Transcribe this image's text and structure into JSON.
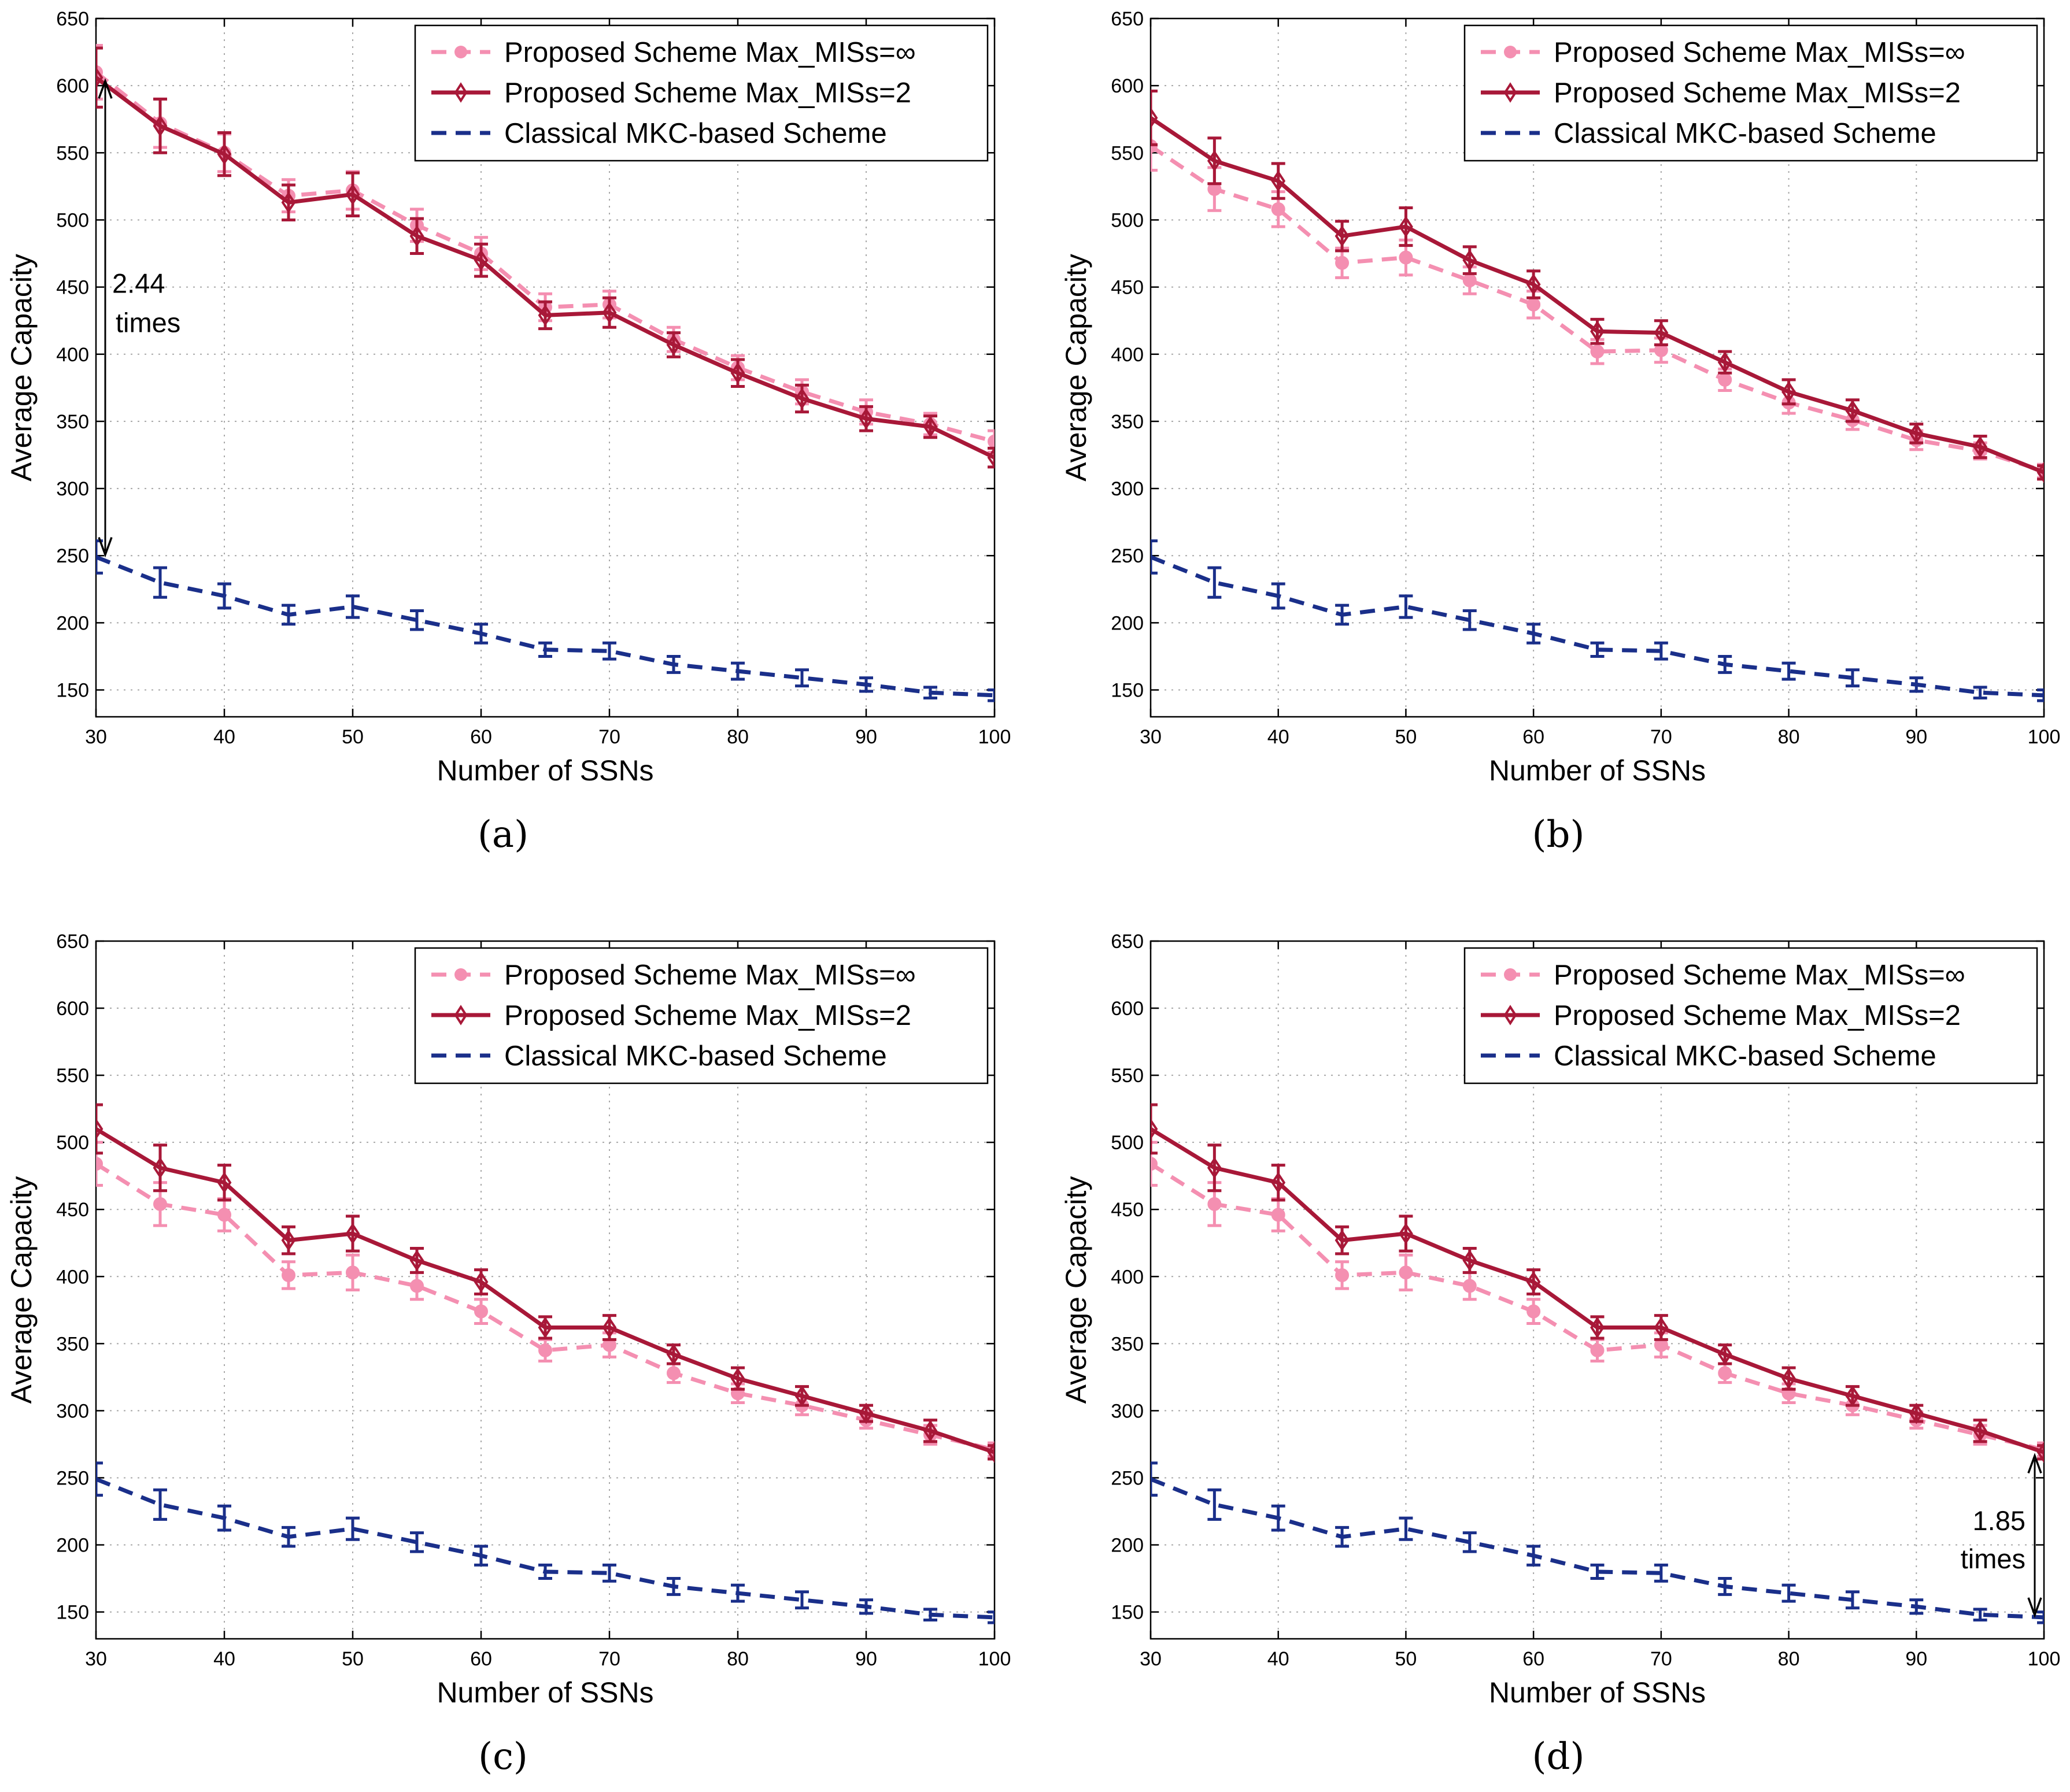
{
  "figure": {
    "panel_labels": [
      "(a)",
      "(b)",
      "(c)",
      "(d)"
    ],
    "colors": {
      "pink": "#f48fb1",
      "crimson": "#a81838",
      "navy": "#1a2f8a",
      "grid": "#a8a8a8"
    },
    "marker_icons": {
      "pink": "circle-icon",
      "crimson": "diamond-icon"
    }
  },
  "chart_data": [
    {
      "type": "line",
      "panel": "(a)",
      "title": "",
      "xlabel": "Number of SSNs",
      "ylabel": "Average Capacity",
      "xlim": [
        30,
        100
      ],
      "ylim": [
        130,
        650
      ],
      "xticks": [
        30,
        40,
        50,
        60,
        70,
        80,
        90,
        100
      ],
      "yticks": [
        150,
        200,
        250,
        300,
        350,
        400,
        450,
        500,
        550,
        600,
        650
      ],
      "grid": true,
      "legend_position": "top-right",
      "x": [
        30,
        35,
        40,
        45,
        50,
        55,
        60,
        65,
        70,
        75,
        80,
        85,
        90,
        95,
        100
      ],
      "series": [
        {
          "name": "Proposed Scheme Max_MISs=∞",
          "color": "#f48fb1",
          "style": "dashed",
          "marker": "circle",
          "values": [
            610,
            572,
            550,
            518,
            522,
            496,
            475,
            435,
            437,
            411,
            390,
            372,
            357,
            348,
            335
          ],
          "errors": [
            20,
            18,
            14,
            12,
            14,
            12,
            12,
            10,
            10,
            9,
            9,
            9,
            9,
            8,
            8
          ]
        },
        {
          "name": "Proposed Scheme Max_MISs=2",
          "color": "#a81838",
          "style": "solid",
          "marker": "diamond",
          "values": [
            606,
            570,
            549,
            513,
            519,
            488,
            470,
            429,
            431,
            407,
            386,
            367,
            352,
            346,
            323
          ],
          "errors": [
            22,
            20,
            16,
            13,
            16,
            13,
            12,
            10,
            11,
            9,
            10,
            10,
            9,
            8,
            7
          ]
        },
        {
          "name": "Classical MKC-based Scheme",
          "color": "#1a2f8a",
          "style": "dashed",
          "marker": "none",
          "values": [
            249,
            230,
            220,
            206,
            212,
            202,
            192,
            180,
            179,
            169,
            164,
            159,
            154,
            148,
            146
          ],
          "errors": [
            12,
            11,
            9,
            7,
            8,
            7,
            7,
            5,
            6,
            6,
            6,
            6,
            5,
            4,
            4
          ]
        }
      ],
      "annotation": {
        "line1": "2.44",
        "line2": "times",
        "x": 30,
        "y_top": 606,
        "y_bottom": 249
      }
    },
    {
      "type": "line",
      "panel": "(b)",
      "title": "",
      "xlabel": "Number of SSNs",
      "ylabel": "Average Capacity",
      "xlim": [
        30,
        100
      ],
      "ylim": [
        130,
        650
      ],
      "xticks": [
        30,
        40,
        50,
        60,
        70,
        80,
        90,
        100
      ],
      "yticks": [
        150,
        200,
        250,
        300,
        350,
        400,
        450,
        500,
        550,
        600,
        650
      ],
      "grid": true,
      "legend_position": "top-right",
      "x": [
        30,
        35,
        40,
        45,
        50,
        55,
        60,
        65,
        70,
        75,
        80,
        85,
        90,
        95,
        100
      ],
      "series": [
        {
          "name": "Proposed Scheme Max_MISs=∞",
          "color": "#f48fb1",
          "style": "dashed",
          "marker": "circle",
          "values": [
            555,
            523,
            508,
            468,
            472,
            455,
            437,
            402,
            403,
            381,
            364,
            351,
            336,
            328,
            313
          ],
          "errors": [
            18,
            16,
            13,
            11,
            13,
            10,
            10,
            9,
            9,
            8,
            8,
            7,
            7,
            6,
            5
          ]
        },
        {
          "name": "Proposed Scheme Max_MISs=2",
          "color": "#a81838",
          "style": "solid",
          "marker": "diamond",
          "values": [
            576,
            544,
            529,
            488,
            495,
            470,
            452,
            417,
            416,
            394,
            372,
            358,
            341,
            331,
            312
          ],
          "errors": [
            20,
            17,
            13,
            11,
            14,
            10,
            10,
            9,
            9,
            8,
            9,
            8,
            7,
            8,
            5
          ]
        },
        {
          "name": "Classical MKC-based Scheme",
          "color": "#1a2f8a",
          "style": "dashed",
          "marker": "none",
          "values": [
            249,
            230,
            220,
            206,
            212,
            202,
            192,
            180,
            179,
            169,
            164,
            159,
            154,
            148,
            146
          ],
          "errors": [
            12,
            11,
            9,
            7,
            8,
            7,
            7,
            5,
            6,
            6,
            6,
            6,
            5,
            4,
            4
          ]
        }
      ]
    },
    {
      "type": "line",
      "panel": "(c)",
      "title": "",
      "xlabel": "Number of SSNs",
      "ylabel": "Average Capacity",
      "xlim": [
        30,
        100
      ],
      "ylim": [
        130,
        650
      ],
      "xticks": [
        30,
        40,
        50,
        60,
        70,
        80,
        90,
        100
      ],
      "yticks": [
        150,
        200,
        250,
        300,
        350,
        400,
        450,
        500,
        550,
        600,
        650
      ],
      "grid": true,
      "legend_position": "top-right",
      "x": [
        30,
        35,
        40,
        45,
        50,
        55,
        60,
        65,
        70,
        75,
        80,
        85,
        90,
        95,
        100
      ],
      "series": [
        {
          "name": "Proposed Scheme Max_MISs=∞",
          "color": "#f48fb1",
          "style": "dashed",
          "marker": "circle",
          "values": [
            484,
            454,
            446,
            401,
            403,
            393,
            374,
            345,
            349,
            328,
            313,
            304,
            293,
            282,
            271
          ],
          "errors": [
            16,
            16,
            12,
            10,
            13,
            10,
            9,
            8,
            9,
            7,
            7,
            7,
            6,
            7,
            5
          ]
        },
        {
          "name": "Proposed Scheme Max_MISs=2",
          "color": "#a81838",
          "style": "solid",
          "marker": "diamond",
          "values": [
            510,
            481,
            470,
            427,
            432,
            412,
            396,
            362,
            362,
            342,
            324,
            311,
            298,
            285,
            269
          ],
          "errors": [
            18,
            17,
            13,
            10,
            13,
            9,
            9,
            8,
            9,
            7,
            8,
            7,
            6,
            8,
            5
          ]
        },
        {
          "name": "Classical MKC-based Scheme",
          "color": "#1a2f8a",
          "style": "dashed",
          "marker": "none",
          "values": [
            249,
            230,
            220,
            206,
            212,
            202,
            192,
            180,
            179,
            169,
            164,
            159,
            154,
            148,
            146
          ],
          "errors": [
            12,
            11,
            9,
            7,
            8,
            7,
            7,
            5,
            6,
            6,
            6,
            6,
            5,
            4,
            4
          ]
        }
      ]
    },
    {
      "type": "line",
      "panel": "(d)",
      "title": "",
      "xlabel": "Number of SSNs",
      "ylabel": "Average Capacity",
      "xlim": [
        30,
        100
      ],
      "ylim": [
        130,
        650
      ],
      "xticks": [
        30,
        40,
        50,
        60,
        70,
        80,
        90,
        100
      ],
      "yticks": [
        150,
        200,
        250,
        300,
        350,
        400,
        450,
        500,
        550,
        600,
        650
      ],
      "grid": true,
      "legend_position": "top-right",
      "x": [
        30,
        35,
        40,
        45,
        50,
        55,
        60,
        65,
        70,
        75,
        80,
        85,
        90,
        95,
        100
      ],
      "series": [
        {
          "name": "Proposed Scheme Max_MISs=∞",
          "color": "#f48fb1",
          "style": "dashed",
          "marker": "circle",
          "values": [
            484,
            454,
            446,
            401,
            403,
            393,
            374,
            345,
            349,
            328,
            313,
            304,
            293,
            282,
            271
          ],
          "errors": [
            16,
            16,
            12,
            10,
            13,
            10,
            9,
            8,
            9,
            7,
            7,
            7,
            6,
            7,
            5
          ]
        },
        {
          "name": "Proposed Scheme Max_MISs=2",
          "color": "#a81838",
          "style": "solid",
          "marker": "diamond",
          "values": [
            510,
            481,
            470,
            427,
            432,
            412,
            396,
            362,
            362,
            342,
            324,
            311,
            298,
            285,
            269
          ],
          "errors": [
            18,
            17,
            13,
            10,
            13,
            9,
            9,
            8,
            9,
            7,
            8,
            7,
            6,
            8,
            5
          ]
        },
        {
          "name": "Classical MKC-based Scheme",
          "color": "#1a2f8a",
          "style": "dashed",
          "marker": "none",
          "values": [
            249,
            230,
            220,
            206,
            212,
            202,
            192,
            180,
            179,
            169,
            164,
            159,
            154,
            148,
            146
          ],
          "errors": [
            12,
            11,
            9,
            7,
            8,
            7,
            7,
            5,
            6,
            6,
            6,
            6,
            5,
            4,
            4
          ]
        }
      ],
      "annotation": {
        "line1": "1.85",
        "line2": "times",
        "x": 100,
        "y_top": 269,
        "y_bottom": 146
      }
    }
  ]
}
